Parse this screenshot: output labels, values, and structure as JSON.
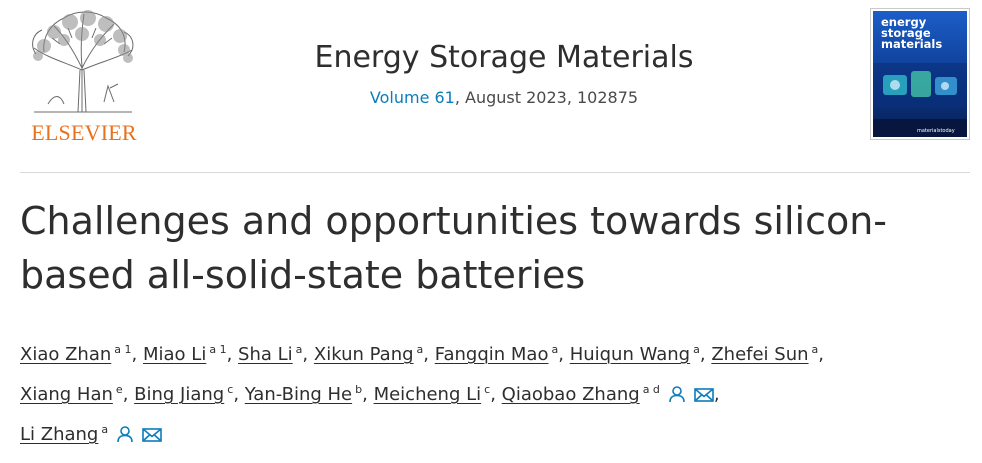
{
  "header": {
    "publisher": "ELSEVIER",
    "journal_title": "Energy Storage Materials",
    "volume_link": "Volume 61",
    "issue_info": ", August 2023, 102875",
    "cover": {
      "title_lines": [
        "energy",
        "storage",
        "materials"
      ],
      "footer": "materialstoday"
    }
  },
  "article": {
    "title_line1": "Challenges and opportunities towards silicon-",
    "title_line2": "based all-solid-state batteries"
  },
  "authors": [
    {
      "name": "Xiao Zhan",
      "aff": "a 1"
    },
    {
      "name": "Miao Li",
      "aff": "a 1"
    },
    {
      "name": "Sha Li",
      "aff": "a"
    },
    {
      "name": "Xikun Pang",
      "aff": "a"
    },
    {
      "name": "Fangqin Mao",
      "aff": "a"
    },
    {
      "name": "Huiqun Wang",
      "aff": "a"
    },
    {
      "name": "Zhefei Sun",
      "aff": "a"
    },
    {
      "name": "Xiang Han",
      "aff": "e"
    },
    {
      "name": "Bing Jiang",
      "aff": "c"
    },
    {
      "name": "Yan-Bing He",
      "aff": "b"
    },
    {
      "name": "Meicheng Li",
      "aff": "c"
    },
    {
      "name": "Qiaobao Zhang",
      "aff": "a d"
    },
    {
      "name": "Li Zhang",
      "aff": "a"
    }
  ],
  "separator": ",",
  "icons": {
    "author": "person-icon",
    "email": "envelope-icon"
  },
  "colors": {
    "publisher": "#e9711c",
    "link": "#0c7dbb",
    "text": "#2e2e2e"
  }
}
